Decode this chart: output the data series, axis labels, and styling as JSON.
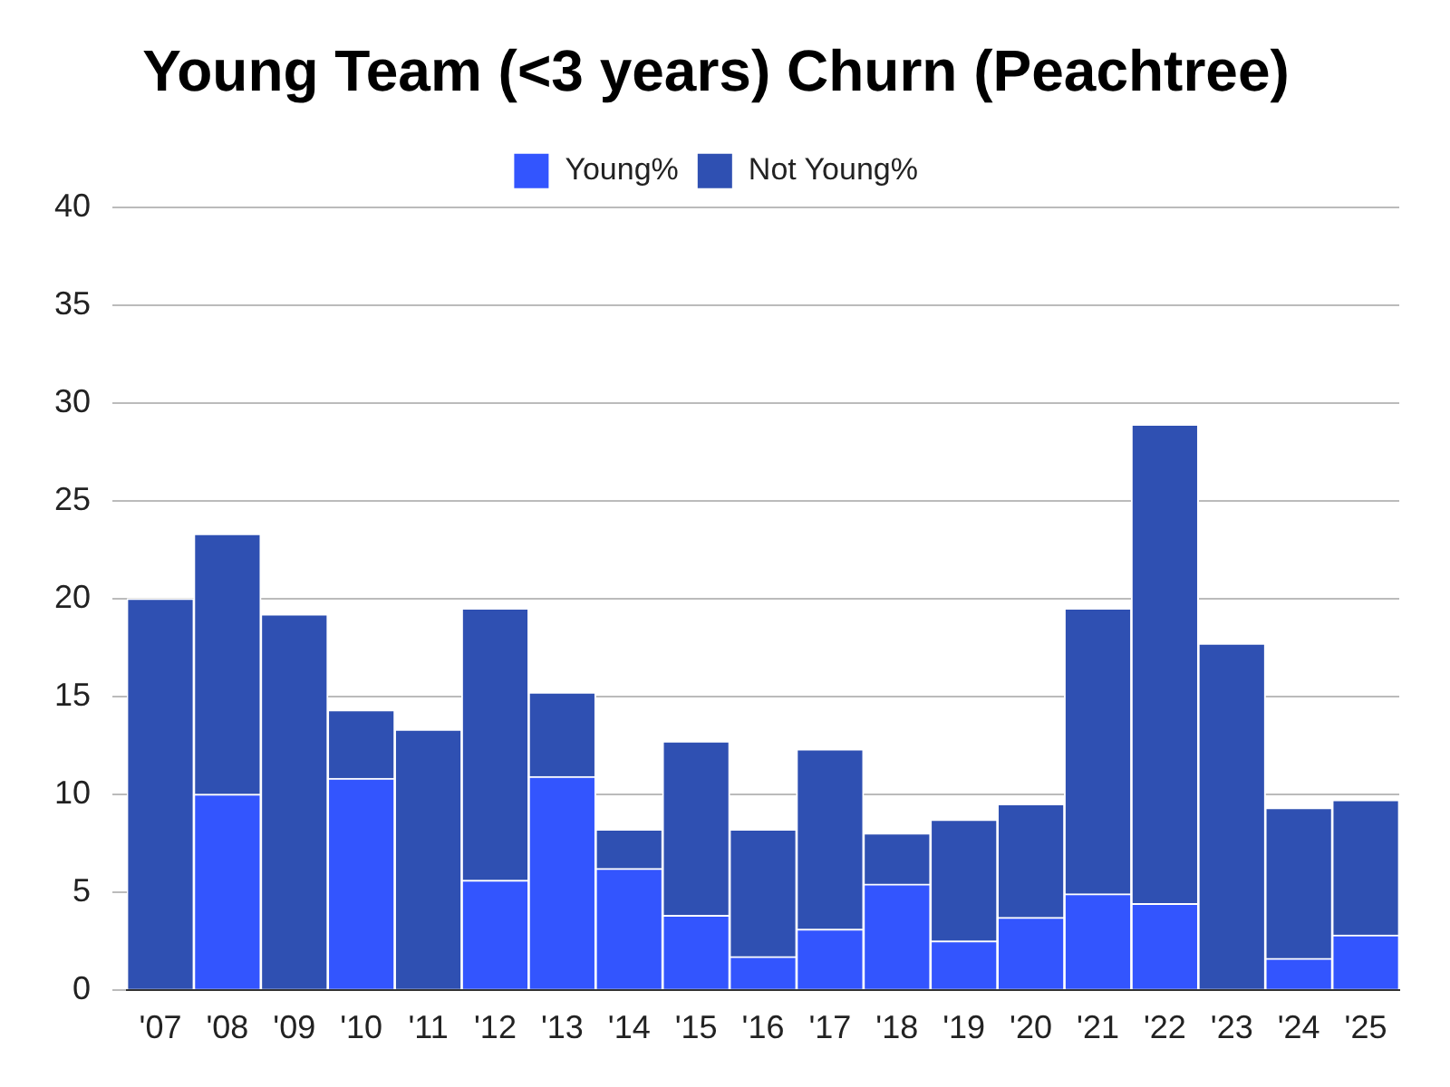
{
  "chart_data": {
    "type": "bar",
    "title": "Young Team (<3 years) Churn (Peachtree)",
    "categories": [
      "'07",
      "'08",
      "'09",
      "'10",
      "'11",
      "'12",
      "'13",
      "'14",
      "'15",
      "'16",
      "'17",
      "'18",
      "'19",
      "'20",
      "'21",
      "'22",
      "'23",
      "'24",
      "'25"
    ],
    "stacked": true,
    "series": [
      {
        "name": "Young%",
        "color": "#3355fe",
        "values": [
          0,
          10.0,
          0,
          10.8,
          0,
          5.6,
          10.9,
          6.2,
          3.8,
          1.7,
          3.1,
          5.4,
          2.5,
          3.7,
          4.9,
          4.4,
          0,
          1.6,
          2.8
        ]
      },
      {
        "name": "Not Young%",
        "color": "#2f50b2",
        "values": [
          20.0,
          13.3,
          19.2,
          3.5,
          13.3,
          13.9,
          4.3,
          2.0,
          8.9,
          6.5,
          9.2,
          2.6,
          6.2,
          5.8,
          14.6,
          24.5,
          17.7,
          7.7,
          6.9
        ]
      }
    ],
    "ylim": [
      0,
      40
    ],
    "yticks": [
      0,
      5,
      10,
      15,
      20,
      25,
      30,
      35,
      40
    ],
    "grid": "y",
    "legend": "top"
  }
}
